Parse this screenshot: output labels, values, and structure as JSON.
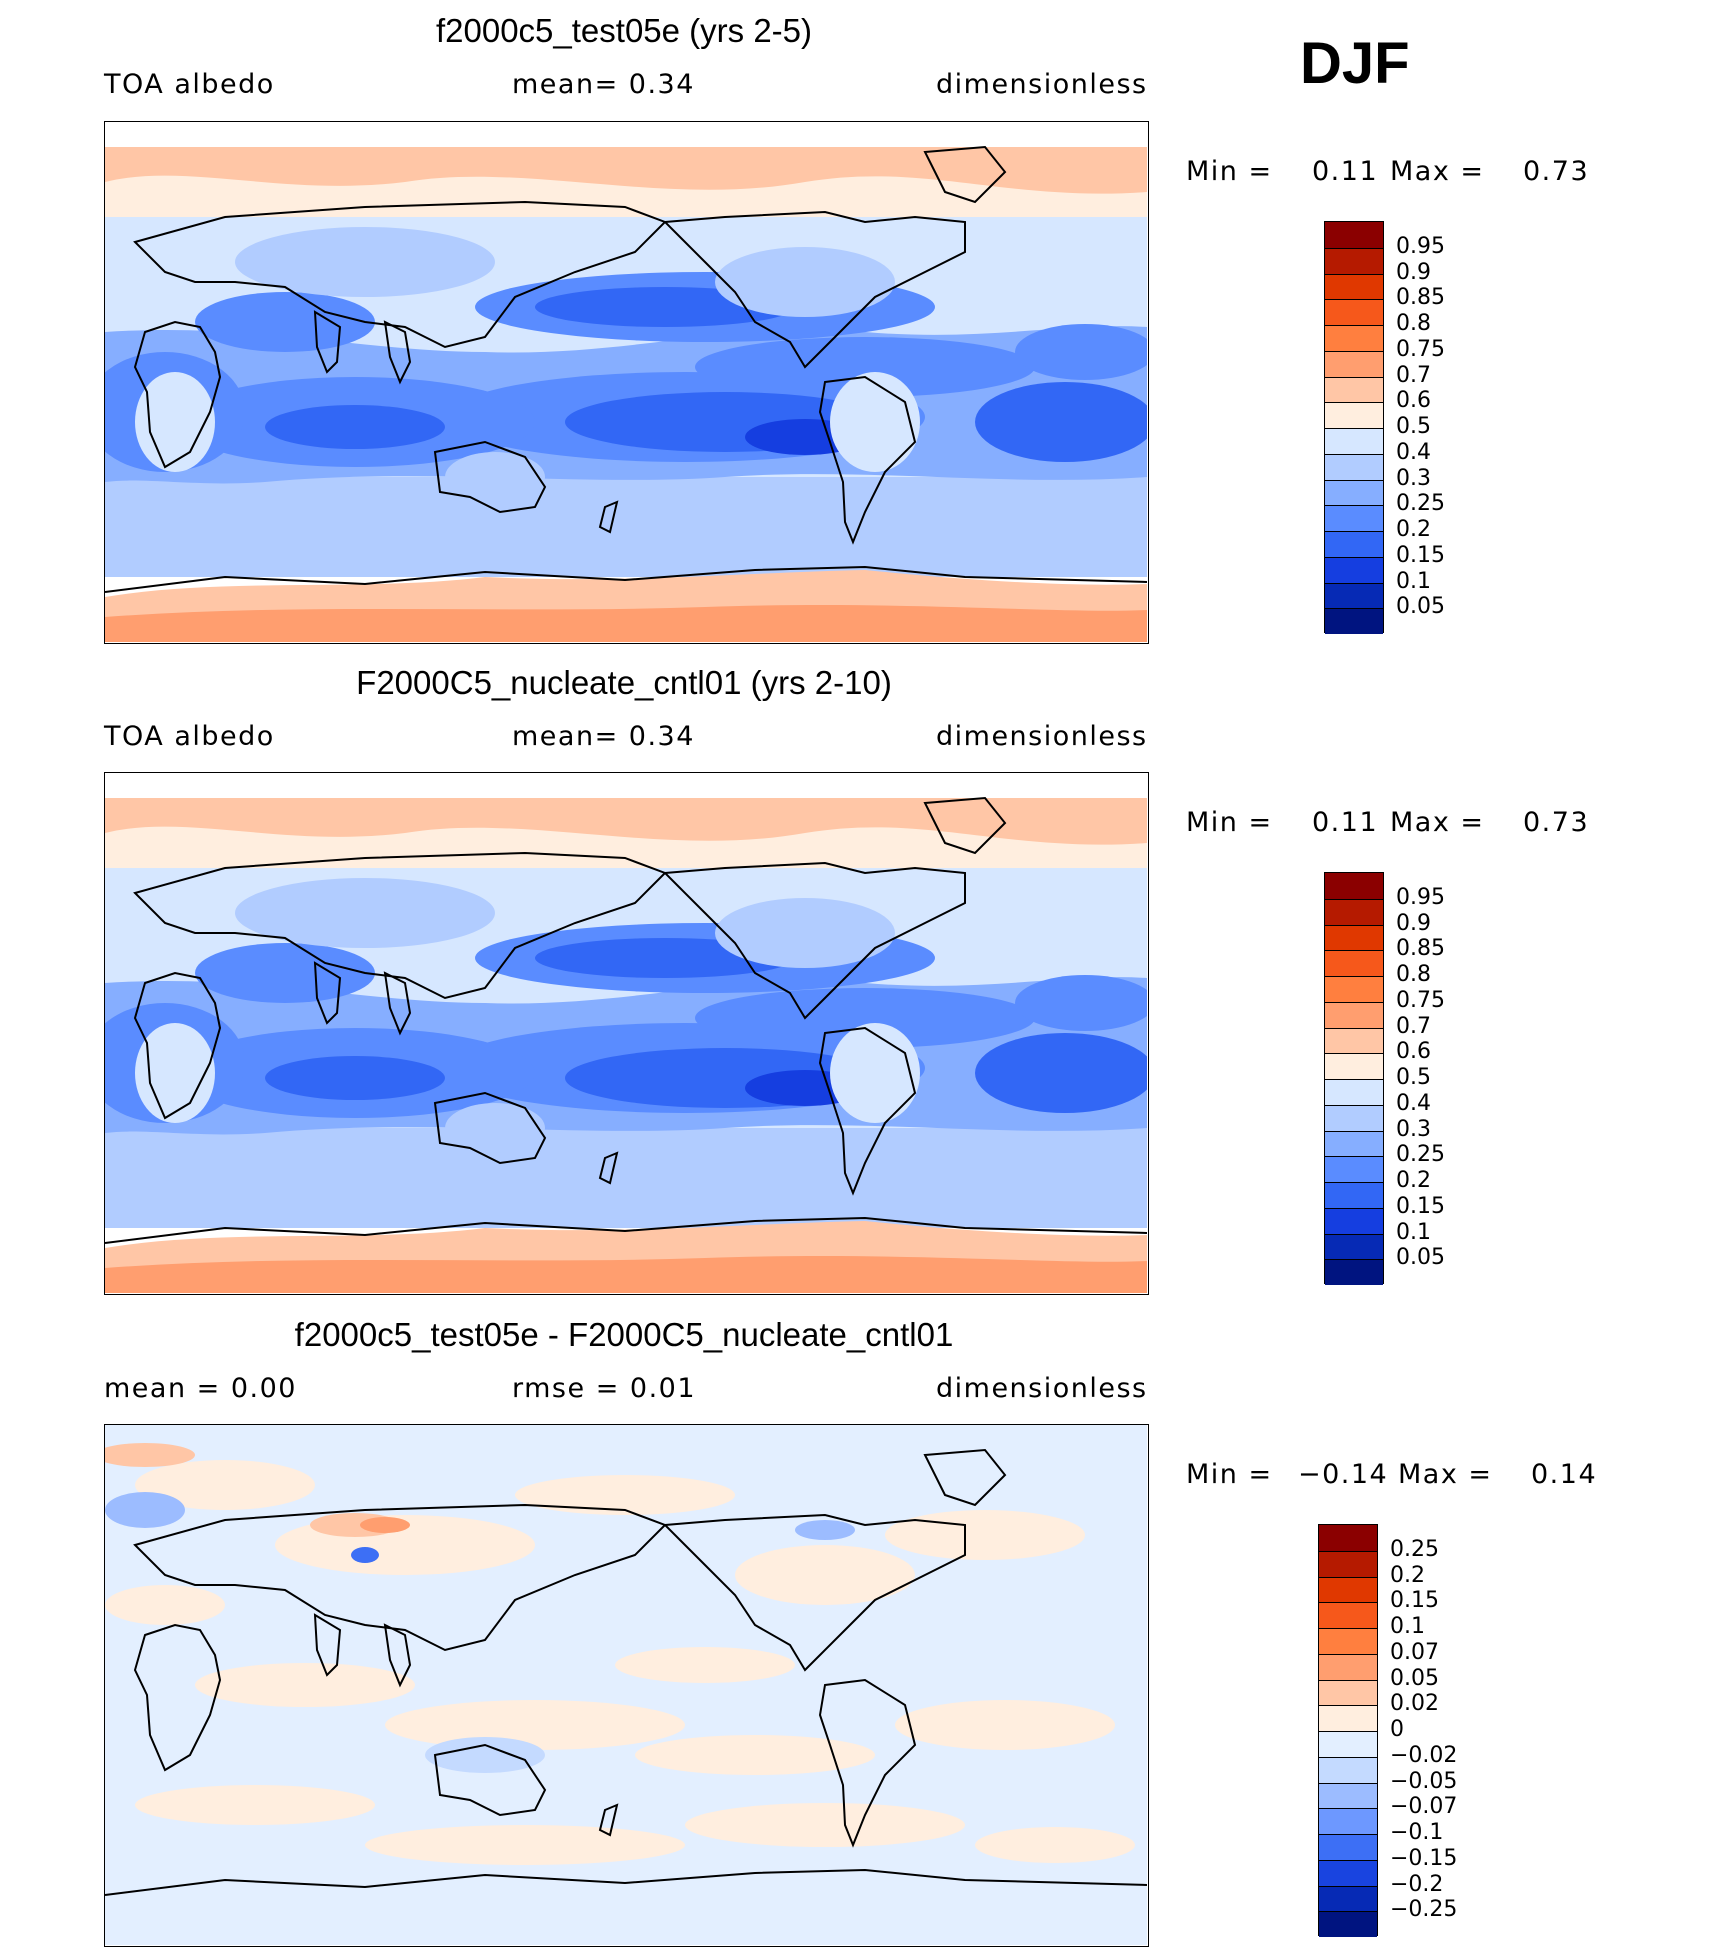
{
  "season": "DJF",
  "panels": [
    {
      "title": "f2000c5_test05e (yrs 2-5)",
      "left": "TOA  albedo",
      "center": "mean=     0.34",
      "right": "dimensionless",
      "min_label": "Min  =",
      "min_value": "0.11",
      "max_label": "Max  =",
      "max_value": "0.73",
      "colorbar_labels": [
        "0.95",
        "0.9",
        "0.85",
        "0.8",
        "0.75",
        "0.7",
        "0.6",
        "0.5",
        "0.4",
        "0.3",
        "0.25",
        "0.2",
        "0.15",
        "0.1",
        "0.05"
      ],
      "colorbar_colors": [
        "#8b0000",
        "#b51a00",
        "#e03800",
        "#f6581b",
        "#ff7f3f",
        "#ff9e6f",
        "#ffc6a6",
        "#ffeedf",
        "#d6e7ff",
        "#b1ccff",
        "#86aeff",
        "#5a8cff",
        "#3267f5",
        "#153ee0",
        "#062ab5",
        "#001480"
      ],
      "map_type": "absolute"
    },
    {
      "title": "F2000C5_nucleate_cntl01 (yrs 2-10)",
      "left": "TOA  albedo",
      "center": "mean=     0.34",
      "right": "dimensionless",
      "min_label": "Min  =",
      "min_value": "0.11",
      "max_label": "Max  =",
      "max_value": "0.73",
      "colorbar_labels": [
        "0.95",
        "0.9",
        "0.85",
        "0.8",
        "0.75",
        "0.7",
        "0.6",
        "0.5",
        "0.4",
        "0.3",
        "0.25",
        "0.2",
        "0.15",
        "0.1",
        "0.05"
      ],
      "colorbar_colors": [
        "#8b0000",
        "#b51a00",
        "#e03800",
        "#f6581b",
        "#ff7f3f",
        "#ff9e6f",
        "#ffc6a6",
        "#ffeedf",
        "#d6e7ff",
        "#b1ccff",
        "#86aeff",
        "#5a8cff",
        "#3267f5",
        "#153ee0",
        "#062ab5",
        "#001480"
      ],
      "map_type": "absolute"
    },
    {
      "title": "f2000c5_test05e - F2000C5_nucleate_cntl01",
      "left": "mean  =     0.00",
      "center": "rmse  =     0.01",
      "right": "dimensionless",
      "min_label": "Min  =",
      "min_value": "−0.14",
      "max_label": "Max  =",
      "max_value": "0.14",
      "colorbar_labels": [
        "0.25",
        "0.2",
        "0.15",
        "0.1",
        "0.07",
        "0.05",
        "0.02",
        "0",
        "−0.02",
        "−0.05",
        "−0.07",
        "−0.1",
        "−0.15",
        "−0.2",
        "−0.25"
      ],
      "colorbar_colors": [
        "#8b0000",
        "#b51a00",
        "#e03800",
        "#f6581b",
        "#ff7f3f",
        "#ff9e6f",
        "#ffc6a6",
        "#ffeedf",
        "#e3efff",
        "#c4daff",
        "#9cbcff",
        "#6d98ff",
        "#3d6ff5",
        "#1944e0",
        "#062ab5",
        "#001480"
      ],
      "map_type": "difference"
    }
  ]
}
